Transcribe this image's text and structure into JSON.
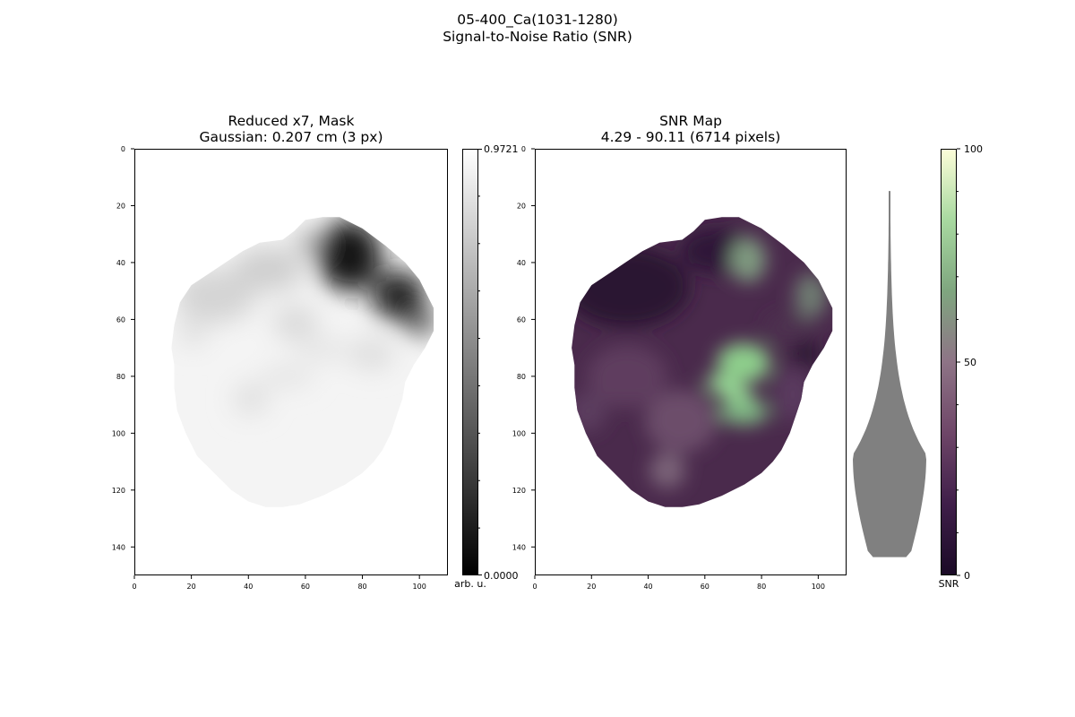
{
  "figure": {
    "title_line1": "05-400_Ca(1031-1280)",
    "title_line2": "Signal-to-Noise Ratio (SNR)"
  },
  "chart_data": [
    {
      "type": "heatmap",
      "title_line1": "Reduced x7, Mask",
      "title_line2": "Gaussian: 0.207 cm (3 px)",
      "colormap": "gray",
      "xlim": [
        0,
        110
      ],
      "ylim": [
        150,
        0
      ],
      "x_ticks": [
        0,
        20,
        40,
        60,
        80,
        100
      ],
      "y_ticks": [
        0,
        20,
        40,
        60,
        80,
        100,
        120,
        140
      ],
      "colorbar": {
        "min_label": "0.0000",
        "max_label": "0.9721",
        "label": "arb. u.",
        "range": [
          0,
          0.9721
        ]
      }
    },
    {
      "type": "heatmap",
      "title_line1": "SNR Map",
      "title_line2": "4.29 - 90.11 (6714 pixels)",
      "colormap": "cubehelix-purple-green",
      "colormap_stops": [
        "#1a0a26",
        "#3f1e49",
        "#6e4668",
        "#8e7486",
        "#7fa67f",
        "#a8d9a0",
        "#fdfdd9"
      ],
      "xlim": [
        0,
        110
      ],
      "ylim": [
        150,
        0
      ],
      "x_ticks": [
        0,
        20,
        40,
        60,
        80,
        100
      ],
      "y_ticks": [
        0,
        20,
        40,
        60,
        80,
        100,
        120,
        140
      ],
      "violin": {
        "color": "#808080",
        "min": 4.29,
        "max": 90.11,
        "peak": 28
      },
      "colorbar": {
        "range": [
          0,
          100
        ],
        "ticks": [
          0,
          50,
          100
        ],
        "label": "SNR"
      }
    }
  ]
}
